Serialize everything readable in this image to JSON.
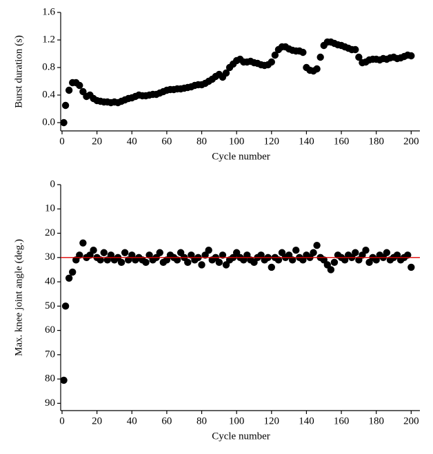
{
  "chart_data": [
    {
      "type": "scatter",
      "xlabel": "Cycle number",
      "ylabel": "Burst duration (s)",
      "color": "#000000",
      "xlim": [
        0,
        205
      ],
      "xticks": [
        0,
        20,
        40,
        60,
        80,
        100,
        120,
        140,
        160,
        180,
        200
      ],
      "ylim": [
        -0.12,
        1.6
      ],
      "yticks": [
        {
          "value": 0,
          "label": "0.0"
        },
        0.4,
        0.8,
        1.2,
        1.6
      ],
      "x": [
        1,
        2,
        4,
        6,
        8,
        10,
        12,
        14,
        16,
        18,
        20,
        22,
        24,
        26,
        28,
        30,
        32,
        34,
        36,
        38,
        40,
        42,
        44,
        46,
        48,
        50,
        52,
        54,
        56,
        58,
        60,
        62,
        64,
        66,
        68,
        70,
        72,
        74,
        76,
        78,
        80,
        82,
        84,
        86,
        88,
        90,
        92,
        94,
        96,
        98,
        100,
        102,
        104,
        106,
        108,
        110,
        112,
        114,
        116,
        118,
        120,
        122,
        124,
        126,
        128,
        130,
        132,
        134,
        136,
        138,
        140,
        142,
        144,
        146,
        148,
        150,
        152,
        154,
        156,
        158,
        160,
        162,
        164,
        166,
        168,
        170,
        172,
        174,
        176,
        178,
        180,
        182,
        184,
        186,
        188,
        190,
        192,
        194,
        196,
        198,
        200
      ],
      "values": [
        0.0,
        0.25,
        0.47,
        0.58,
        0.58,
        0.54,
        0.45,
        0.38,
        0.4,
        0.35,
        0.32,
        0.31,
        0.3,
        0.3,
        0.29,
        0.3,
        0.29,
        0.31,
        0.33,
        0.35,
        0.36,
        0.38,
        0.4,
        0.39,
        0.39,
        0.4,
        0.41,
        0.41,
        0.43,
        0.45,
        0.47,
        0.48,
        0.48,
        0.49,
        0.49,
        0.5,
        0.51,
        0.52,
        0.54,
        0.55,
        0.55,
        0.57,
        0.6,
        0.63,
        0.67,
        0.7,
        0.66,
        0.72,
        0.8,
        0.85,
        0.9,
        0.92,
        0.88,
        0.88,
        0.89,
        0.87,
        0.86,
        0.84,
        0.83,
        0.84,
        0.88,
        0.98,
        1.06,
        1.1,
        1.1,
        1.07,
        1.05,
        1.04,
        1.04,
        1.02,
        0.8,
        0.76,
        0.75,
        0.78,
        0.95,
        1.12,
        1.17,
        1.17,
        1.15,
        1.13,
        1.12,
        1.1,
        1.08,
        1.06,
        1.06,
        0.95,
        0.87,
        0.88,
        0.91,
        0.92,
        0.92,
        0.91,
        0.93,
        0.92,
        0.94,
        0.95,
        0.93,
        0.94,
        0.96,
        0.98,
        0.97
      ]
    },
    {
      "type": "scatter",
      "xlabel": "Cycle number",
      "ylabel": "Max. knee joint angle (deg.)",
      "color": "#000000",
      "xlim": [
        0,
        205
      ],
      "xticks": [
        0,
        20,
        40,
        60,
        80,
        100,
        120,
        140,
        160,
        180,
        200
      ],
      "ylim": [
        93,
        0
      ],
      "yticks": [
        0,
        10,
        20,
        30,
        40,
        50,
        60,
        70,
        80,
        90
      ],
      "reference_line": {
        "value": 30,
        "color": "#e00000"
      },
      "x": [
        1,
        2,
        4,
        6,
        8,
        10,
        12,
        14,
        16,
        18,
        20,
        22,
        24,
        26,
        28,
        30,
        32,
        34,
        36,
        38,
        40,
        42,
        44,
        46,
        48,
        50,
        52,
        54,
        56,
        58,
        60,
        62,
        64,
        66,
        68,
        70,
        72,
        74,
        76,
        78,
        80,
        82,
        84,
        86,
        88,
        90,
        92,
        94,
        96,
        98,
        100,
        102,
        104,
        106,
        108,
        110,
        112,
        114,
        116,
        118,
        120,
        122,
        124,
        126,
        128,
        130,
        132,
        134,
        136,
        138,
        140,
        142,
        144,
        146,
        148,
        150,
        152,
        154,
        156,
        158,
        160,
        162,
        164,
        166,
        168,
        170,
        172,
        174,
        176,
        178,
        180,
        182,
        184,
        186,
        188,
        190,
        192,
        194,
        196,
        198,
        200
      ],
      "values": [
        80.5,
        50,
        38.5,
        36,
        31,
        29,
        24,
        30,
        29,
        27,
        30,
        31,
        28,
        31,
        29,
        31,
        30,
        32,
        28,
        31,
        29,
        31,
        30,
        31,
        32,
        29,
        31,
        30,
        28,
        32,
        31,
        29,
        30,
        31,
        28,
        30,
        32,
        29,
        31,
        30,
        33,
        29,
        27,
        31,
        30,
        32,
        29,
        33,
        31,
        30,
        28,
        30,
        31,
        29,
        31,
        32,
        30,
        29,
        31,
        30,
        34,
        30,
        31,
        28,
        30,
        29,
        31,
        27,
        30,
        31,
        29,
        30,
        28,
        25,
        30,
        31,
        33,
        35,
        32,
        29,
        30,
        31,
        29,
        30,
        28,
        31,
        29,
        27,
        32,
        30,
        31,
        29,
        30,
        28,
        31,
        30,
        29,
        31,
        30,
        29,
        34
      ]
    }
  ]
}
